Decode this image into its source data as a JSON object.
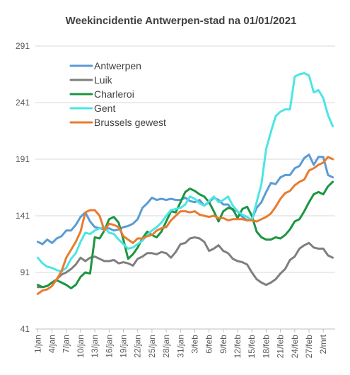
{
  "chart_data": {
    "type": "line",
    "title": "Weekincidentie  Antwerpen-stad na 01/01/2021",
    "xlabel": "",
    "ylabel": "",
    "ylim": [
      41,
      291
    ],
    "yticks": [
      41,
      91,
      141,
      191,
      241,
      291
    ],
    "grid": true,
    "legend_position": "top-left",
    "x": [
      "1/jan",
      "2/jan",
      "3/jan",
      "4/jan",
      "5/jan",
      "6/jan",
      "7/jan",
      "8/jan",
      "9/jan",
      "10/jan",
      "11/jan",
      "12/jan",
      "13/jan",
      "14/jan",
      "15/jan",
      "16/jan",
      "17/jan",
      "18/jan",
      "19/jan",
      "20/jan",
      "21/jan",
      "22/jan",
      "23/jan",
      "24/jan",
      "25/jan",
      "26/jan",
      "27/jan",
      "28/jan",
      "29/jan",
      "30/jan",
      "31/jan",
      "1/feb",
      "2/feb",
      "3/feb",
      "4/feb",
      "5/feb",
      "6/feb",
      "7/feb",
      "8/feb",
      "9/feb",
      "10/feb",
      "11/feb",
      "12/feb",
      "13/feb",
      "14/feb",
      "15/feb",
      "16/feb",
      "17/feb",
      "18/feb",
      "19/feb",
      "20/feb",
      "21/feb",
      "22/feb",
      "23/feb",
      "24/feb",
      "25/feb",
      "26/feb",
      "27/feb",
      "28/feb",
      "1/mrt",
      "2/mrt",
      "3/mrt",
      "4/mrt"
    ],
    "xtick_labels": [
      "1/jan",
      "4/jan",
      "7/jan",
      "10/jan",
      "13/jan",
      "16/jan",
      "19/jan",
      "22/jan",
      "25/jan",
      "28/jan",
      "31/jan",
      "3/feb",
      "6/feb",
      "9/feb",
      "12/feb",
      "15/feb",
      "18/feb",
      "21/feb",
      "24/feb",
      "27/feb",
      "2/mrt"
    ],
    "series": [
      {
        "name": "Antwerpen",
        "color": "#5b9bd5",
        "values": [
          118,
          116,
          120,
          117,
          121,
          123,
          128,
          128,
          133,
          140,
          144,
          136,
          131,
          130,
          129,
          130,
          128,
          129,
          131,
          132,
          134,
          138,
          148,
          152,
          157,
          155,
          156,
          155,
          156,
          155,
          155,
          157,
          154,
          153,
          155,
          150,
          153,
          157,
          155,
          151,
          151,
          146,
          145,
          140,
          137,
          138,
          148,
          153,
          162,
          170,
          169,
          175,
          177,
          177,
          183,
          185,
          192,
          195,
          186,
          193,
          193,
          177,
          175
        ]
      },
      {
        "name": "Luik",
        "color": "#7f7f7f",
        "values": [
          78,
          78,
          79,
          82,
          85,
          89,
          91,
          94,
          98,
          104,
          101,
          104,
          105,
          103,
          101,
          101,
          102,
          99,
          100,
          99,
          97,
          103,
          105,
          108,
          108,
          107,
          109,
          108,
          104,
          109,
          116,
          117,
          121,
          122,
          121,
          118,
          110,
          112,
          115,
          110,
          108,
          103,
          101,
          100,
          98,
          91,
          85,
          82,
          80,
          82,
          85,
          90,
          94,
          102,
          105,
          112,
          115,
          117,
          113,
          112,
          112,
          106,
          104
        ]
      },
      {
        "name": "Charleroi",
        "color": "#1a9641",
        "values": [
          80,
          78,
          79,
          82,
          84,
          82,
          80,
          77,
          80,
          87,
          91,
          90,
          122,
          121,
          128,
          138,
          140,
          135,
          120,
          103,
          107,
          113,
          121,
          127,
          124,
          122,
          127,
          136,
          145,
          144,
          153,
          162,
          165,
          163,
          160,
          158,
          153,
          145,
          136,
          145,
          148,
          147,
          139,
          147,
          149,
          141,
          127,
          122,
          120,
          120,
          122,
          121,
          124,
          129,
          136,
          138,
          145,
          153,
          160,
          162,
          160,
          167,
          171
        ]
      },
      {
        "name": "Gent",
        "color": "#4ce5e5",
        "values": [
          104,
          99,
          96,
          95,
          93,
          92,
          95,
          103,
          108,
          118,
          126,
          125,
          128,
          130,
          131,
          126,
          125,
          120,
          116,
          112,
          113,
          116,
          119,
          124,
          128,
          131,
          135,
          141,
          146,
          147,
          148,
          151,
          158,
          156,
          152,
          150,
          154,
          158,
          153,
          155,
          158,
          150,
          145,
          142,
          140,
          137,
          153,
          169,
          200,
          215,
          229,
          233,
          235,
          235,
          264,
          266,
          267,
          265,
          250,
          252,
          245,
          230,
          220
        ]
      },
      {
        "name": "Brussels gewest",
        "color": "#e97b2f",
        "values": [
          72,
          75,
          76,
          79,
          85,
          92,
          104,
          111,
          118,
          127,
          144,
          146,
          146,
          141,
          128,
          134,
          133,
          131,
          123,
          120,
          117,
          121,
          121,
          123,
          124,
          128,
          130,
          131,
          137,
          141,
          145,
          145,
          144,
          145,
          142,
          141,
          140,
          141,
          139,
          139,
          137,
          138,
          138,
          138,
          137,
          137,
          136,
          138,
          140,
          143,
          149,
          156,
          161,
          163,
          168,
          171,
          173,
          181,
          183,
          186,
          188,
          193,
          191
        ]
      }
    ]
  }
}
